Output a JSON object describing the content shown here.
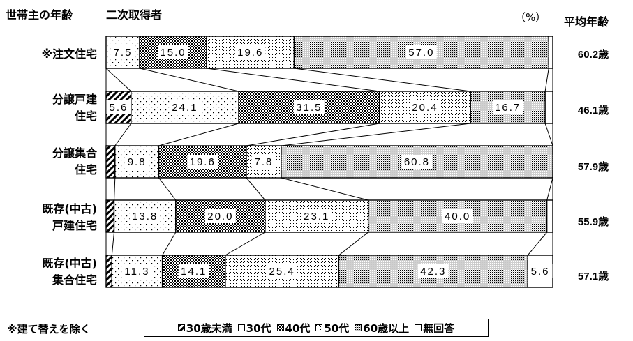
{
  "header": {
    "row_header": "世帯主の年齢",
    "sub_header": "二次取得者",
    "unit": "（%）",
    "avg_header": "平均年齢"
  },
  "footnote": "※建て替えを除く",
  "legend": {
    "items": [
      {
        "label": "30歳未満",
        "pattern": "hatch"
      },
      {
        "label": "30代",
        "pattern": "sparse-dots"
      },
      {
        "label": "40代",
        "pattern": "checker"
      },
      {
        "label": "50代",
        "pattern": "dense-dots"
      },
      {
        "label": "60歳以上",
        "pattern": "grid-dots"
      },
      {
        "label": "無回答",
        "pattern": "white"
      }
    ]
  },
  "chart_data": {
    "type": "bar",
    "orientation": "horizontal-stacked-100",
    "unit": "（%）",
    "series": [
      {
        "name": "30歳未満"
      },
      {
        "name": "30代"
      },
      {
        "name": "40代"
      },
      {
        "name": "50代"
      },
      {
        "name": "60歳以上"
      },
      {
        "name": "無回答"
      }
    ],
    "rows": [
      {
        "label": "※注文住宅",
        "average_age": "60.2歳",
        "values": [
          0,
          7.5,
          15.0,
          19.6,
          57.0,
          0.9
        ],
        "labels": [
          "",
          "7.5",
          "15.0",
          "19.6",
          "57.0",
          ""
        ]
      },
      {
        "label": "分譲戸建\n住宅",
        "average_age": "46.1歳",
        "values": [
          5.6,
          24.1,
          31.5,
          20.4,
          16.7,
          1.7
        ],
        "labels": [
          "5.6",
          "24.1",
          "31.5",
          "20.4",
          "16.7",
          ""
        ]
      },
      {
        "label": "分譲集合\n住宅",
        "average_age": "57.9歳",
        "values": [
          2.0,
          9.8,
          19.6,
          7.8,
          60.8,
          0
        ],
        "labels": [
          "",
          "9.8",
          "19.6",
          "7.8",
          "60.8",
          ""
        ]
      },
      {
        "label": "既存(中古)\n戸建住宅",
        "average_age": "55.9歳",
        "values": [
          1.8,
          13.8,
          20.0,
          23.1,
          40.0,
          1.3
        ],
        "labels": [
          "",
          "13.8",
          "20.0",
          "23.1",
          "40.0",
          ""
        ]
      },
      {
        "label": "既存(中古)\n集合住宅",
        "average_age": "57.1歳",
        "values": [
          1.3,
          11.3,
          14.1,
          25.4,
          42.3,
          5.6
        ],
        "labels": [
          "",
          "11.3",
          "14.1",
          "25.4",
          "42.3",
          "5.6"
        ]
      }
    ]
  }
}
